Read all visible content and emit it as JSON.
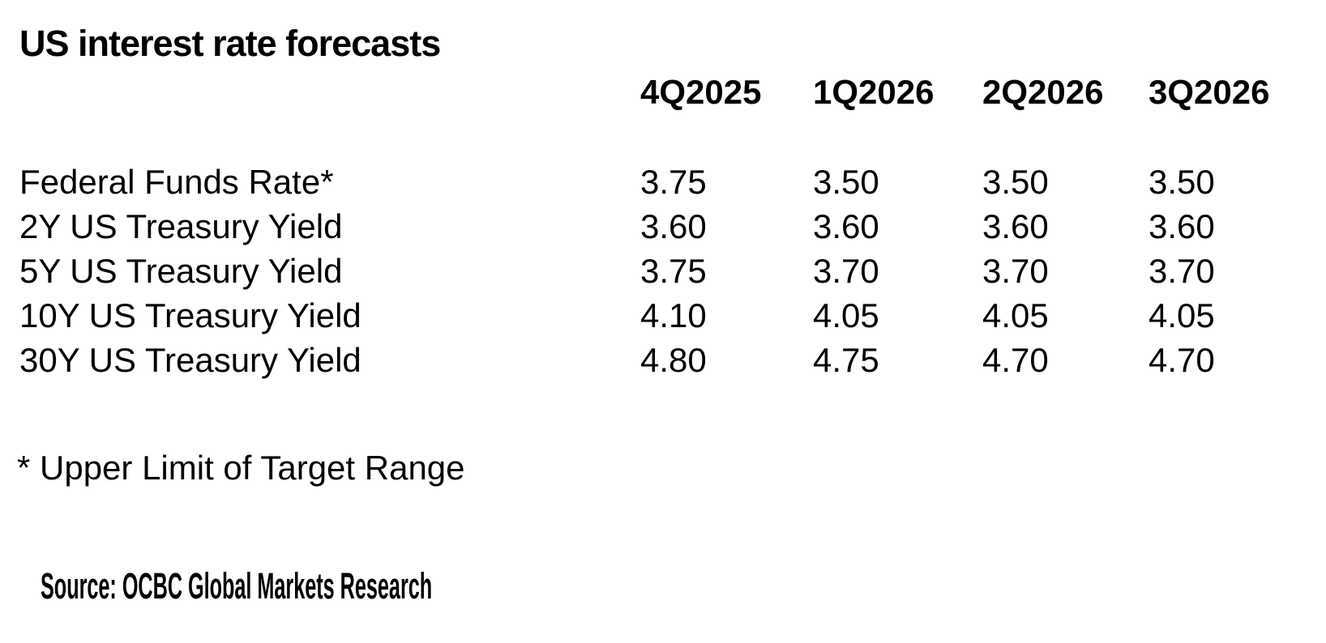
{
  "title": "US interest rate forecasts",
  "table": {
    "columns": [
      "4Q2025",
      "1Q2026",
      "2Q2026",
      "3Q2026"
    ],
    "rows": [
      {
        "label": "Federal Funds Rate*",
        "values": [
          "3.75",
          "3.50",
          "3.50",
          "3.50"
        ]
      },
      {
        "label": "2Y US Treasury Yield",
        "values": [
          "3.60",
          "3.60",
          "3.60",
          "3.60"
        ]
      },
      {
        "label": "5Y US Treasury Yield",
        "values": [
          "3.75",
          "3.70",
          "3.70",
          "3.70"
        ]
      },
      {
        "label": "10Y US Treasury Yield",
        "values": [
          "4.10",
          "4.05",
          "4.05",
          "4.05"
        ]
      },
      {
        "label": "30Y US Treasury Yield",
        "values": [
          "4.80",
          "4.75",
          "4.70",
          "4.70"
        ]
      }
    ]
  },
  "footnote": "* Upper Limit of Target Range",
  "source": "Source: OCBC Global Markets Research",
  "colors": {
    "text": "#000000",
    "background": "#ffffff"
  }
}
